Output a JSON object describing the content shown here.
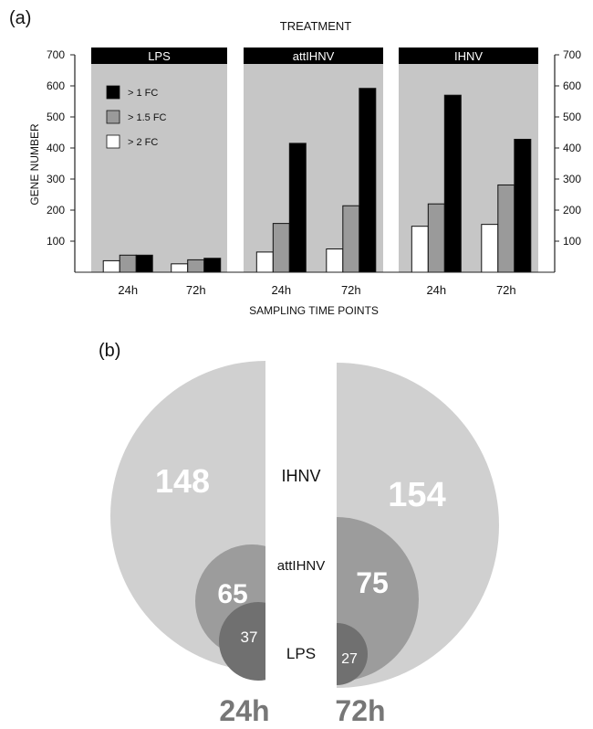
{
  "figure_a": {
    "panel_label": "(a)",
    "top_title": "TREATMENT",
    "ylabel": "GENE NUMBER",
    "xlabel": "SAMPLING TIME POINTS"
  },
  "figure_b": {
    "panel_label": "(b)",
    "center_labels": [
      "IHNV",
      "attIHNV",
      "LPS"
    ],
    "left_time_label": "24h",
    "right_time_label": "72h"
  },
  "colors": {
    "panel_bg": "#c6c6c6",
    "header_bg": "#000000",
    "gt1": "#000000",
    "gt15": "#9a9a9a",
    "gt2": "#ffffff",
    "venn_outer": "#d0d0d0",
    "venn_mid": "#9c9c9c",
    "venn_inner": "#707070",
    "time_label": "#777777"
  },
  "chart_data": [
    {
      "type": "bar",
      "title": "TREATMENT",
      "xlabel": "SAMPLING TIME POINTS",
      "ylabel": "GENE NUMBER",
      "ylim": [
        0,
        700
      ],
      "yticks": [
        100,
        200,
        300,
        400,
        500,
        600,
        700
      ],
      "legend": [
        "> 1 FC",
        "> 1.5 FC",
        "> 2 FC"
      ],
      "legend_position": "top-left",
      "categories": [
        "24h",
        "72h"
      ],
      "facets": [
        {
          "name": "LPS",
          "series": [
            {
              "name": "> 2 FC",
              "values": [
                37,
                27
              ]
            },
            {
              "name": "> 1.5 FC",
              "values": [
                55,
                40
              ]
            },
            {
              "name": "> 1 FC",
              "values": [
                55,
                45
              ]
            }
          ]
        },
        {
          "name": "attIHNV",
          "series": [
            {
              "name": "> 2 FC",
              "values": [
                65,
                75
              ]
            },
            {
              "name": "> 1.5 FC",
              "values": [
                157,
                214
              ]
            },
            {
              "name": "> 1 FC",
              "values": [
                415,
                592
              ]
            }
          ]
        },
        {
          "name": "IHNV",
          "series": [
            {
              "name": "> 2 FC",
              "values": [
                148,
                154
              ]
            },
            {
              "name": "> 1.5 FC",
              "values": [
                220,
                281
              ]
            },
            {
              "name": "> 1 FC",
              "values": [
                570,
                428
              ]
            }
          ]
        }
      ]
    },
    {
      "type": "venn",
      "panels": [
        {
          "time": "24h",
          "sets": [
            {
              "name": "IHNV",
              "value": 148
            },
            {
              "name": "attIHNV",
              "value": 65
            },
            {
              "name": "LPS",
              "value": 37
            }
          ]
        },
        {
          "time": "72h",
          "sets": [
            {
              "name": "IHNV",
              "value": 154
            },
            {
              "name": "attIHNV",
              "value": 75
            },
            {
              "name": "LPS",
              "value": 27
            }
          ]
        }
      ]
    }
  ]
}
